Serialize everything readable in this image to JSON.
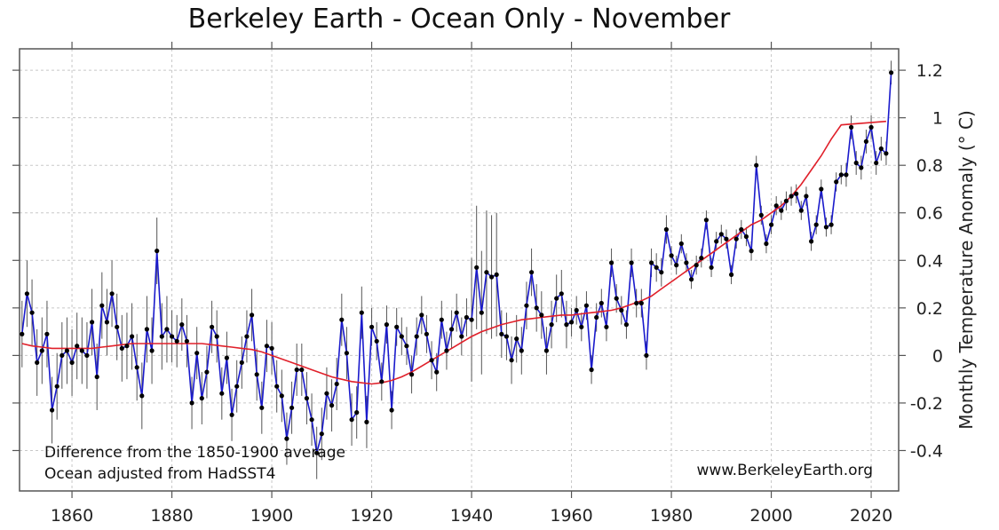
{
  "chart_data": {
    "type": "line",
    "title": "Berkeley Earth - Ocean Only - November",
    "ylabel": "Monthly Temperature Anomaly (° C)",
    "xlabel": "",
    "xlim": [
      1849.5,
      2025.5
    ],
    "ylim": [
      -0.57,
      1.29
    ],
    "x_ticks": [
      1860,
      1880,
      1900,
      1920,
      1940,
      1960,
      1980,
      2000,
      2020
    ],
    "y_ticks": [
      -0.4,
      -0.2,
      0,
      0.2,
      0.4,
      0.6,
      0.8,
      1,
      1.2
    ],
    "y_tick_labels": [
      "-0.4",
      "-0.2",
      "0",
      "0.2",
      "0.4",
      "0.6",
      "0.8",
      "1",
      "1.2"
    ],
    "x_tick_labels": [
      "1860",
      "1880",
      "1900",
      "1920",
      "1940",
      "1960",
      "1980",
      "2000",
      "2020"
    ],
    "grid": true,
    "annotations": [
      "Difference from the 1850-1900 average",
      "Ocean adjusted from HadSST4",
      "www.BerkeleyEarth.org"
    ],
    "colors": {
      "annual": "#1a1acc",
      "smooth": "#e0202a",
      "points": "#000000",
      "error_bars": "#555555",
      "grid": "#c8c8c8"
    },
    "start_year": 1850,
    "series": [
      {
        "values": [
          0.09,
          0.26,
          0.18,
          -0.03,
          0.02,
          0.09,
          -0.23,
          -0.13,
          0.0,
          0.02,
          -0.03,
          0.04,
          0.02,
          0.0,
          0.14,
          -0.09,
          0.21,
          0.14,
          0.26,
          0.12,
          0.03,
          0.04,
          0.08,
          -0.05,
          -0.17,
          0.11,
          0.02,
          0.44,
          0.08,
          0.11,
          0.08,
          0.06,
          0.13,
          0.06,
          -0.2,
          0.01,
          -0.18,
          -0.07,
          0.12,
          0.08,
          -0.16,
          -0.01,
          -0.25,
          -0.13,
          -0.03,
          0.08,
          0.17,
          -0.08,
          -0.22,
          0.04,
          0.03,
          -0.13,
          -0.17,
          -0.35,
          -0.22,
          -0.06,
          -0.06,
          -0.18,
          -0.27,
          -0.41,
          -0.33,
          -0.16,
          -0.21,
          -0.12,
          0.15,
          0.01,
          -0.27,
          -0.24,
          0.18,
          -0.28,
          0.12,
          0.06,
          -0.11,
          0.13,
          -0.23,
          0.12,
          0.08,
          0.04,
          -0.08,
          0.08,
          0.17,
          0.09,
          -0.02,
          -0.07,
          0.15,
          0.02,
          0.11,
          0.18,
          0.08,
          0.16,
          0.15,
          0.37,
          0.18,
          0.35,
          0.33,
          0.34,
          0.09,
          0.08,
          -0.02,
          0.07,
          0.02,
          0.21,
          0.35,
          0.2,
          0.17,
          0.02,
          0.13,
          0.24,
          0.26,
          0.13,
          0.14,
          0.19,
          0.12,
          0.21,
          -0.06,
          0.16,
          0.22,
          0.12,
          0.39,
          0.24,
          0.19,
          0.13,
          0.39,
          0.22,
          0.22,
          0.0,
          0.39,
          0.37,
          0.35,
          0.53,
          0.42,
          0.38,
          0.47,
          0.39,
          0.32,
          0.38,
          0.41,
          0.57,
          0.37,
          0.48,
          0.51,
          0.49,
          0.34,
          0.49,
          0.53,
          0.5,
          0.44,
          0.8,
          0.59,
          0.47,
          0.55,
          0.63,
          0.61,
          0.65,
          0.67,
          0.68,
          0.61,
          0.67,
          0.48,
          0.55,
          0.7,
          0.54,
          0.55,
          0.73,
          0.76,
          0.76,
          0.96,
          0.81,
          0.79,
          0.9,
          0.96,
          0.81,
          0.87,
          0.85,
          1.19
        ]
      },
      {
        "values": [
          0.05,
          0.04,
          0.035,
          0.03,
          0.03,
          0.03,
          0.03,
          0.03,
          0.035,
          0.04,
          0.045,
          0.05,
          0.05,
          0.05,
          0.05,
          0.05,
          0.05,
          0.05,
          0.05,
          0.045,
          0.04,
          0.035,
          0.03,
          0.025,
          0.015,
          0.0,
          -0.015,
          -0.03,
          -0.045,
          -0.06,
          -0.075,
          -0.09,
          -0.1,
          -0.11,
          -0.115,
          -0.12,
          -0.115,
          -0.105,
          -0.09,
          -0.07,
          -0.045,
          -0.02,
          0.005,
          0.03,
          0.055,
          0.08,
          0.1,
          0.115,
          0.13,
          0.14,
          0.15,
          0.155,
          0.16,
          0.165,
          0.17,
          0.17,
          0.175,
          0.18,
          0.185,
          0.19,
          0.2,
          0.215,
          0.23,
          0.25,
          0.28,
          0.31,
          0.34,
          0.37,
          0.4,
          0.43,
          0.46,
          0.49,
          0.52,
          0.55,
          0.57,
          0.6,
          0.63,
          0.67,
          0.72,
          0.78,
          0.84,
          0.91,
          0.97
        ],
        "x": [
          1850,
          1852,
          1854,
          1856,
          1858,
          1860,
          1862,
          1864,
          1866,
          1868,
          1870,
          1872,
          1874,
          1876,
          1878,
          1880,
          1882,
          1884,
          1886,
          1888,
          1890,
          1892,
          1894,
          1896,
          1898,
          1900,
          1902,
          1904,
          1906,
          1908,
          1910,
          1912,
          1914,
          1916,
          1918,
          1920,
          1922,
          1924,
          1926,
          1928,
          1930,
          1932,
          1934,
          1936,
          1938,
          1940,
          1942,
          1944,
          1946,
          1948,
          1950,
          1952,
          1954,
          1956,
          1958,
          1960,
          1962,
          1964,
          1966,
          1968,
          1970,
          1972,
          1974,
          1976,
          1978,
          1980,
          1982,
          1984,
          1986,
          1988,
          1990,
          1992,
          1994,
          1996,
          1998,
          2000,
          2002,
          2004,
          2006,
          2008,
          2010,
          2012,
          2014
        ]
      }
    ]
  }
}
